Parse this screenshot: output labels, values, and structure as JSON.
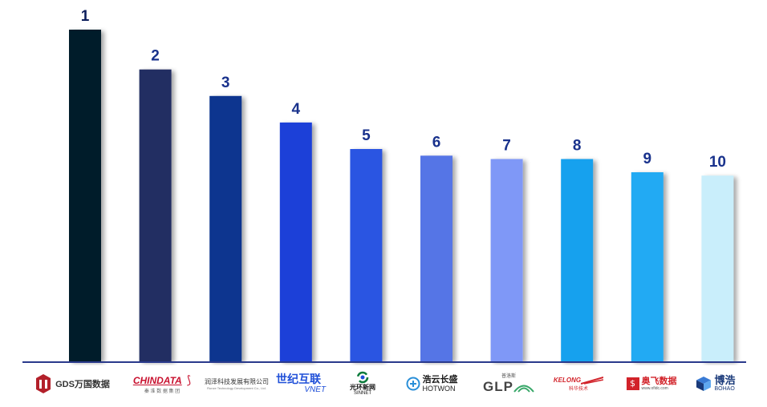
{
  "chart_data": {
    "type": "bar",
    "categories": [
      "GDS万国数据",
      "CHINDATA",
      "润泽科技发展有限公司",
      "世纪互联 VNET",
      "光环新网 SINNET",
      "浩云长盛 HOTWON",
      "普洛斯 GLP",
      "KELONG",
      "奥飞数据",
      "博浩 BOHAO"
    ],
    "values": [
      100,
      88,
      80,
      72,
      64,
      62,
      61,
      61,
      57,
      56
    ],
    "data_labels": [
      "1",
      "2",
      "3",
      "4",
      "5",
      "6",
      "7",
      "8",
      "9",
      "10"
    ],
    "colors": [
      "#061d2b",
      "#232f62",
      "#0a348f",
      "#1c3fd8",
      "#2b54e2",
      "#5574e6",
      "#7f98f7",
      "#15a1ee",
      "#21aaf3",
      "#c9eefb"
    ],
    "label_color": "#19328c",
    "axis_color": "#2a3a8c",
    "title": "",
    "xlabel": "",
    "ylabel": "",
    "ylim": [
      0,
      100
    ],
    "grid": false,
    "legend": "none"
  },
  "logos": [
    {
      "name": "gds",
      "text": "GDS万国数据",
      "sub": "",
      "color": "#b3202a"
    },
    {
      "name": "chindata",
      "text": "CHINDATA",
      "sub": "秦 淮 数 据 集 团",
      "color": "#c8102e"
    },
    {
      "name": "runze",
      "text": "润泽科技发展有限公司",
      "sub": "Runze Technology Development Co., Ltd.",
      "color": "#333333"
    },
    {
      "name": "vnet",
      "text": "世纪互联",
      "sub": "VNET",
      "color": "#1f4fd8"
    },
    {
      "name": "sinnet",
      "text": "光环新网",
      "sub": "SINNET",
      "color": "#111111"
    },
    {
      "name": "hotwon",
      "text": "浩云长盛",
      "sub": "HOTWON",
      "color": "#1a1a1a"
    },
    {
      "name": "glp",
      "text": "GLP",
      "sub": "普洛斯",
      "color": "#444444"
    },
    {
      "name": "kelong",
      "text": "KELONG",
      "sub": "科华技术",
      "color": "#d2232a"
    },
    {
      "name": "aofei",
      "text": "奥飞数据",
      "sub": "www.ofidc.com",
      "color": "#d2232a"
    },
    {
      "name": "bohao",
      "text": "博浩",
      "sub": "BOHAO",
      "color": "#1a3a7a"
    }
  ]
}
